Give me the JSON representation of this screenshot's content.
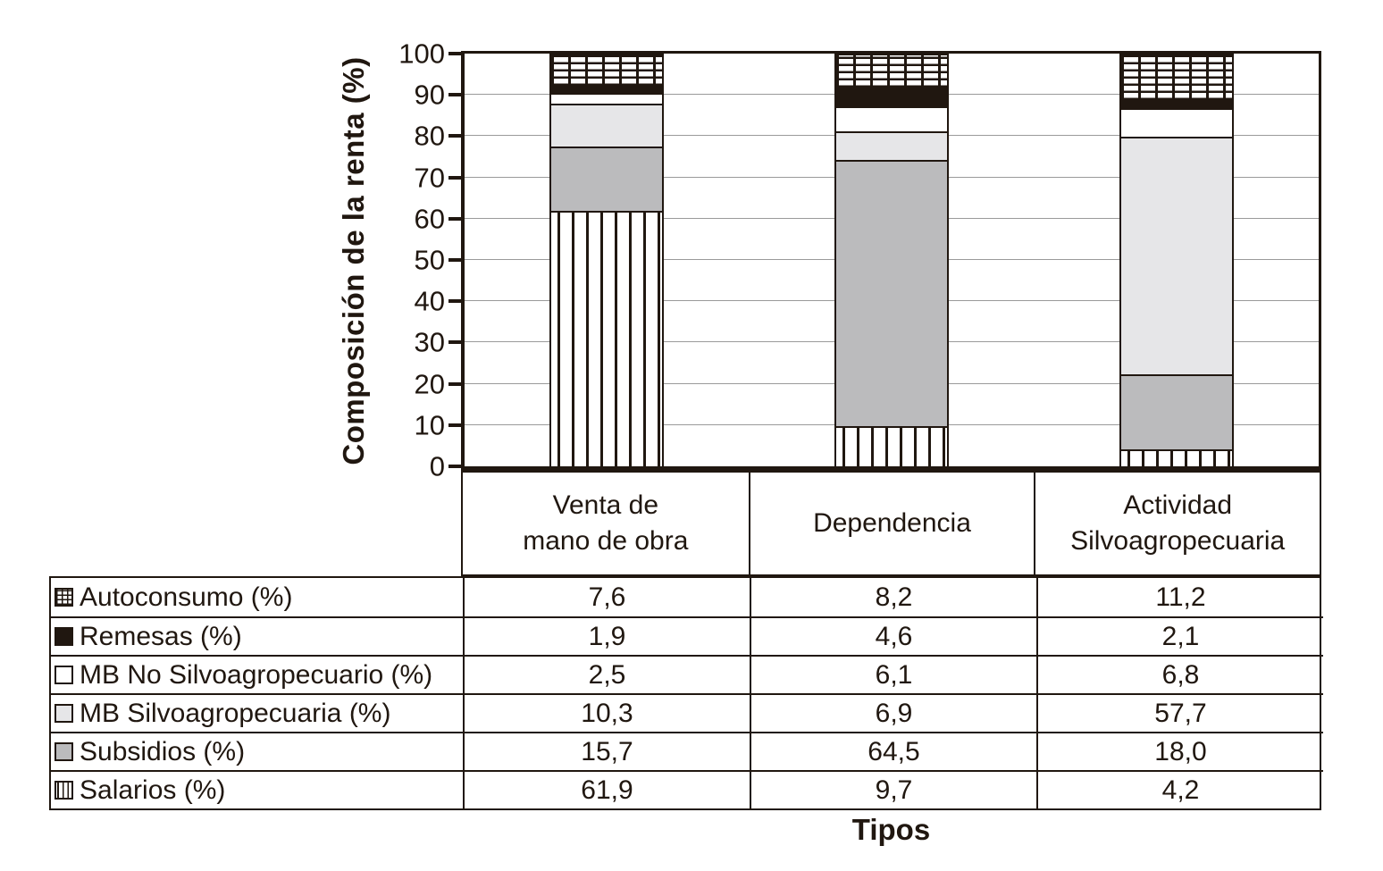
{
  "colors": {
    "ink": "#201710",
    "gridline": "#9a9a9a",
    "subsidios_gray": "#bbbbbd",
    "mb_silvo_gray": "#e6e6e8",
    "white": "#ffffff"
  },
  "chart_data": {
    "type": "bar",
    "stacked": true,
    "title": "",
    "xlabel": "Tipos",
    "ylabel": "Composición de la renta (%)",
    "ylim": [
      0,
      100
    ],
    "yticks": [
      0,
      10,
      20,
      30,
      40,
      50,
      60,
      70,
      80,
      90,
      100
    ],
    "grid": true,
    "legend_position": "table-below-left",
    "categories": [
      "Venta de\nmano de obra",
      "Dependencia",
      "Actividad\nSilvoagropecuaria"
    ],
    "series": [
      {
        "name": "Salarios (%)",
        "pattern": "vstripes",
        "values": [
          61.9,
          9.7,
          4.2
        ]
      },
      {
        "name": "Subsidios (%)",
        "pattern": "mid",
        "color": "#bbbbbd",
        "values": [
          15.7,
          64.5,
          18.0
        ]
      },
      {
        "name": "MB Silvoagropecuaria (%)",
        "pattern": "light",
        "color": "#e6e6e8",
        "values": [
          10.3,
          6.9,
          57.7
        ]
      },
      {
        "name": "MB No Silvoagropecuario (%)",
        "pattern": "white",
        "color": "#ffffff",
        "values": [
          2.5,
          6.1,
          6.8
        ]
      },
      {
        "name": "Remesas (%)",
        "pattern": "solid",
        "color": "#201710",
        "values": [
          1.9,
          4.6,
          2.1
        ]
      },
      {
        "name": "Autoconsumo (%)",
        "pattern": "grid",
        "values": [
          7.6,
          8.2,
          11.2
        ]
      }
    ]
  },
  "table": {
    "rows": [
      {
        "icon": "grid",
        "label": "Autoconsumo (%)",
        "values": [
          "7,6",
          "8,2",
          "11,2"
        ]
      },
      {
        "icon": "solid",
        "label": "Remesas (%)",
        "values": [
          "1,9",
          "4,6",
          "2,1"
        ]
      },
      {
        "icon": "white",
        "label": "MB No Silvoagropecuario (%)",
        "values": [
          "2,5",
          "6,1",
          "6,8"
        ]
      },
      {
        "icon": "light",
        "label": "MB Silvoagropecuaria (%)",
        "values": [
          "10,3",
          "6,9",
          "57,7"
        ]
      },
      {
        "icon": "mid",
        "label": "Subsidios (%)",
        "values": [
          "15,7",
          "64,5",
          "18,0"
        ]
      },
      {
        "icon": "vstripes",
        "label": "Salarios (%)",
        "values": [
          "61,9",
          "9,7",
          "4,2"
        ]
      }
    ]
  }
}
